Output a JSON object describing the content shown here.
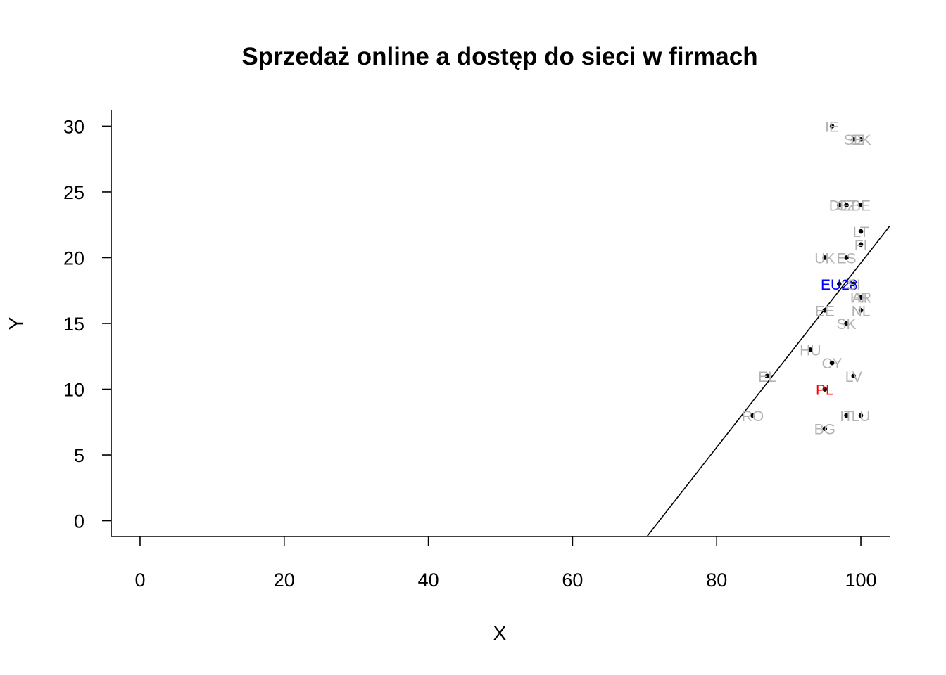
{
  "chart_data": {
    "type": "scatter",
    "title": "Sprzedaż online a dostęp do sieci w firmach",
    "xlabel": "X",
    "ylabel": "Y",
    "xlim": [
      -4,
      104
    ],
    "ylim": [
      -1.2,
      31.2
    ],
    "x_ticks": [
      0,
      20,
      40,
      60,
      80,
      100
    ],
    "y_ticks": [
      0,
      5,
      10,
      15,
      20,
      25,
      30
    ],
    "regression_line": {
      "slope": 0.701,
      "intercept": -50.5
    },
    "colors": {
      "default_label": "#b3b3b3",
      "highlight_eu": "#0000ff",
      "highlight_pl": "#ff0000",
      "point": "#000000",
      "line": "#000000"
    },
    "points": [
      {
        "label": "IE",
        "x": 96,
        "y": 30,
        "highlight": ""
      },
      {
        "label": "SE",
        "x": 99,
        "y": 29,
        "highlight": ""
      },
      {
        "label": "DK",
        "x": 100,
        "y": 29,
        "highlight": ""
      },
      {
        "label": "DE",
        "x": 97,
        "y": 24,
        "highlight": ""
      },
      {
        "label": "CZ",
        "x": 98,
        "y": 24,
        "highlight": ""
      },
      {
        "label": "BE",
        "x": 100,
        "y": 24,
        "highlight": ""
      },
      {
        "label": "LT",
        "x": 100,
        "y": 22,
        "highlight": ""
      },
      {
        "label": "FI",
        "x": 100,
        "y": 21,
        "highlight": ""
      },
      {
        "label": "UK",
        "x": 95,
        "y": 20,
        "highlight": ""
      },
      {
        "label": "ES",
        "x": 98,
        "y": 20,
        "highlight": ""
      },
      {
        "label": "EU28",
        "x": 97,
        "y": 18,
        "highlight": "eu"
      },
      {
        "label": "SI",
        "x": 99,
        "y": 18,
        "highlight": ""
      },
      {
        "label": "AT",
        "x": 100,
        "y": 17,
        "highlight": ""
      },
      {
        "label": "HR",
        "x": 100,
        "y": 17,
        "highlight": ""
      },
      {
        "label": "EE",
        "x": 95,
        "y": 16,
        "highlight": ""
      },
      {
        "label": "NL",
        "x": 100,
        "y": 16,
        "highlight": ""
      },
      {
        "label": "SK",
        "x": 98,
        "y": 15,
        "highlight": ""
      },
      {
        "label": "HU",
        "x": 93,
        "y": 13,
        "highlight": ""
      },
      {
        "label": "CY",
        "x": 96,
        "y": 12,
        "highlight": ""
      },
      {
        "label": "EL",
        "x": 87,
        "y": 11,
        "highlight": ""
      },
      {
        "label": "LV",
        "x": 99,
        "y": 11,
        "highlight": ""
      },
      {
        "label": "PL",
        "x": 95,
        "y": 10,
        "highlight": "pl"
      },
      {
        "label": "RO",
        "x": 85,
        "y": 8,
        "highlight": ""
      },
      {
        "label": "IT",
        "x": 98,
        "y": 8,
        "highlight": ""
      },
      {
        "label": "LU",
        "x": 100,
        "y": 8,
        "highlight": ""
      },
      {
        "label": "BG",
        "x": 95,
        "y": 7,
        "highlight": ""
      }
    ]
  }
}
